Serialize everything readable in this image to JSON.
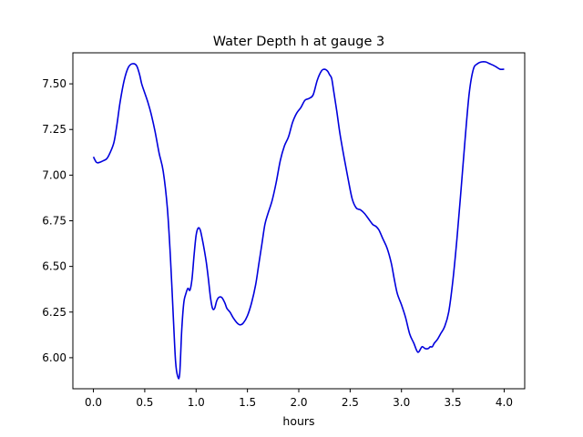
{
  "chart_data": {
    "type": "line",
    "title": "Water Depth h at gauge 3",
    "xlabel": "hours",
    "ylabel": "",
    "xlim": [
      -0.2,
      4.2
    ],
    "ylim": [
      5.83,
      7.67
    ],
    "xticks": [
      0.0,
      0.5,
      1.0,
      1.5,
      2.0,
      2.5,
      3.0,
      3.5,
      4.0
    ],
    "xtick_labels": [
      "0.0",
      "0.5",
      "1.0",
      "1.5",
      "2.0",
      "2.5",
      "3.0",
      "3.5",
      "4.0"
    ],
    "yticks": [
      6.0,
      6.25,
      6.5,
      6.75,
      7.0,
      7.25,
      7.5
    ],
    "ytick_labels": [
      "6.00",
      "6.25",
      "6.50",
      "6.75",
      "7.00",
      "7.25",
      "7.50"
    ],
    "grid": false,
    "series": [
      {
        "color": "#0000dd",
        "x": [
          0.0,
          0.03,
          0.06,
          0.1,
          0.13,
          0.16,
          0.2,
          0.23,
          0.26,
          0.3,
          0.34,
          0.38,
          0.42,
          0.45,
          0.47,
          0.5,
          0.53,
          0.56,
          0.6,
          0.64,
          0.68,
          0.72,
          0.75,
          0.78,
          0.8,
          0.82,
          0.84,
          0.86,
          0.88,
          0.9,
          0.92,
          0.94,
          0.96,
          0.98,
          1.0,
          1.02,
          1.04,
          1.06,
          1.08,
          1.1,
          1.12,
          1.14,
          1.16,
          1.18,
          1.2,
          1.22,
          1.25,
          1.28,
          1.3,
          1.33,
          1.36,
          1.4,
          1.43,
          1.46,
          1.5,
          1.54,
          1.58,
          1.61,
          1.64,
          1.67,
          1.7,
          1.74,
          1.78,
          1.82,
          1.86,
          1.9,
          1.94,
          1.98,
          2.02,
          2.06,
          2.1,
          2.14,
          2.18,
          2.22,
          2.25,
          2.28,
          2.3,
          2.32,
          2.34,
          2.37,
          2.4,
          2.44,
          2.48,
          2.52,
          2.56,
          2.6,
          2.64,
          2.68,
          2.72,
          2.75,
          2.78,
          2.82,
          2.86,
          2.9,
          2.93,
          2.96,
          3.0,
          3.04,
          3.08,
          3.12,
          3.16,
          3.2,
          3.23,
          3.26,
          3.28,
          3.3,
          3.32,
          3.35,
          3.38,
          3.42,
          3.46,
          3.5,
          3.54,
          3.58,
          3.62,
          3.66,
          3.7,
          3.74,
          3.78,
          3.82,
          3.86,
          3.9,
          3.93,
          3.96,
          4.0
        ],
        "y": [
          7.1,
          7.07,
          7.07,
          7.08,
          7.09,
          7.12,
          7.18,
          7.28,
          7.4,
          7.52,
          7.59,
          7.61,
          7.6,
          7.55,
          7.5,
          7.45,
          7.4,
          7.34,
          7.24,
          7.12,
          7.02,
          6.82,
          6.55,
          6.2,
          5.98,
          5.9,
          5.91,
          6.15,
          6.3,
          6.35,
          6.38,
          6.37,
          6.43,
          6.56,
          6.67,
          6.71,
          6.7,
          6.65,
          6.59,
          6.52,
          6.43,
          6.33,
          6.27,
          6.27,
          6.31,
          6.33,
          6.33,
          6.3,
          6.27,
          6.25,
          6.22,
          6.19,
          6.18,
          6.19,
          6.23,
          6.3,
          6.4,
          6.51,
          6.62,
          6.73,
          6.79,
          6.86,
          6.96,
          7.08,
          7.16,
          7.21,
          7.29,
          7.34,
          7.37,
          7.41,
          7.42,
          7.44,
          7.52,
          7.57,
          7.58,
          7.57,
          7.55,
          7.53,
          7.46,
          7.35,
          7.23,
          7.1,
          6.98,
          6.87,
          6.82,
          6.81,
          6.79,
          6.76,
          6.73,
          6.72,
          6.7,
          6.65,
          6.6,
          6.52,
          6.43,
          6.35,
          6.29,
          6.22,
          6.13,
          6.08,
          6.03,
          6.06,
          6.05,
          6.05,
          6.06,
          6.06,
          6.08,
          6.1,
          6.13,
          6.17,
          6.25,
          6.42,
          6.65,
          6.92,
          7.2,
          7.45,
          7.58,
          7.61,
          7.62,
          7.62,
          7.61,
          7.6,
          7.59,
          7.58,
          7.58
        ]
      }
    ]
  }
}
